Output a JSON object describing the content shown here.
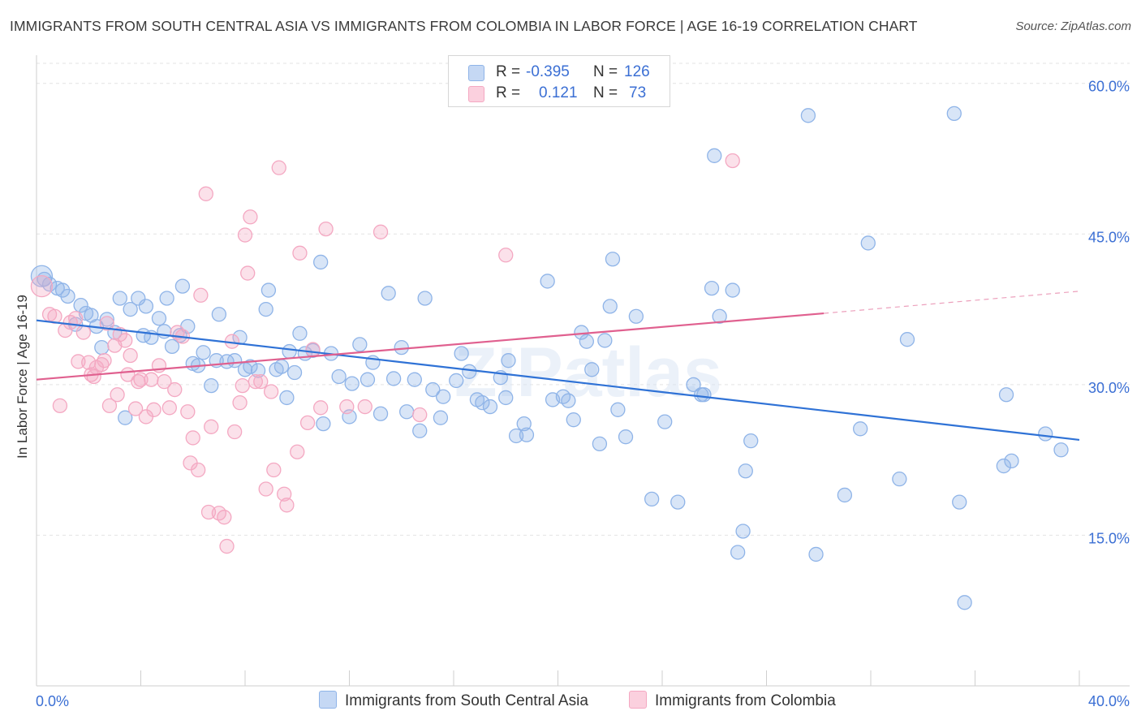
{
  "title": "IMMIGRANTS FROM SOUTH CENTRAL ASIA VS IMMIGRANTS FROM COLOMBIA IN LABOR FORCE | AGE 16-19 CORRELATION CHART",
  "source": "Source: ZipAtlas.com",
  "watermark": "ZIPatlas",
  "legend": {
    "r_label": "R =",
    "n_label": "N =",
    "series1": {
      "r": "-0.395",
      "n": "126"
    },
    "series2": {
      "r": "0.121",
      "n": "73"
    }
  },
  "chart_data": {
    "type": "scatter",
    "title": "IMMIGRANTS FROM SOUTH CENTRAL ASIA VS IMMIGRANTS FROM COLOMBIA IN LABOR FORCE | AGE 16-19 CORRELATION CHART",
    "xlabel": "",
    "ylabel": "In Labor Force | Age 16-19",
    "xlim": [
      0,
      40
    ],
    "ylim": [
      0,
      62
    ],
    "x_tick_labels": [
      "0.0%",
      "40.0%"
    ],
    "y_ticks": [
      15,
      30,
      45,
      60
    ],
    "y_tick_labels": [
      "15.0%",
      "30.0%",
      "45.0%",
      "60.0%"
    ],
    "grid": true,
    "legend_position": "top-center",
    "series": [
      {
        "name": "Immigrants from South Central Asia",
        "color": "#8fb4e8",
        "line_color": "#2f72d6",
        "r": -0.395,
        "n": 126,
        "trend": {
          "x": [
            0,
            40
          ],
          "y": [
            36.4,
            24.5
          ]
        },
        "points": [
          [
            0.2,
            40.8
          ],
          [
            0.5,
            40.0
          ],
          [
            0.8,
            39.6
          ],
          [
            1.2,
            38.8
          ],
          [
            1.7,
            37.9
          ],
          [
            2.1,
            36.9
          ],
          [
            2.3,
            35.8
          ],
          [
            2.7,
            36.5
          ],
          [
            1.5,
            36.0
          ],
          [
            1.0,
            39.4
          ],
          [
            2.5,
            33.7
          ],
          [
            3.0,
            35.2
          ],
          [
            3.2,
            38.6
          ],
          [
            3.6,
            37.5
          ],
          [
            3.4,
            26.7
          ],
          [
            3.9,
            38.6
          ],
          [
            4.2,
            37.8
          ],
          [
            4.4,
            34.7
          ],
          [
            4.7,
            36.6
          ],
          [
            4.9,
            35.3
          ],
          [
            5.0,
            38.6
          ],
          [
            5.2,
            33.8
          ],
          [
            5.5,
            34.9
          ],
          [
            5.6,
            39.8
          ],
          [
            5.8,
            35.8
          ],
          [
            6.0,
            32.1
          ],
          [
            6.2,
            31.9
          ],
          [
            6.4,
            33.2
          ],
          [
            6.7,
            29.9
          ],
          [
            6.9,
            32.4
          ],
          [
            7.0,
            37.0
          ],
          [
            7.3,
            32.3
          ],
          [
            7.6,
            32.4
          ],
          [
            7.8,
            34.7
          ],
          [
            8.0,
            31.5
          ],
          [
            8.2,
            31.8
          ],
          [
            8.5,
            31.4
          ],
          [
            8.8,
            37.5
          ],
          [
            8.9,
            39.4
          ],
          [
            9.2,
            31.5
          ],
          [
            9.4,
            31.8
          ],
          [
            9.7,
            33.3
          ],
          [
            9.9,
            31.2
          ],
          [
            10.1,
            35.1
          ],
          [
            10.3,
            33.1
          ],
          [
            10.6,
            33.4
          ],
          [
            10.9,
            42.2
          ],
          [
            11.0,
            26.1
          ],
          [
            11.3,
            33.1
          ],
          [
            11.6,
            30.8
          ],
          [
            12.0,
            26.8
          ],
          [
            12.1,
            30.1
          ],
          [
            12.4,
            34.0
          ],
          [
            12.7,
            30.5
          ],
          [
            12.9,
            32.2
          ],
          [
            13.2,
            27.1
          ],
          [
            13.5,
            39.1
          ],
          [
            13.7,
            30.6
          ],
          [
            14.0,
            33.7
          ],
          [
            14.2,
            27.3
          ],
          [
            14.5,
            30.5
          ],
          [
            14.7,
            25.4
          ],
          [
            14.9,
            38.6
          ],
          [
            15.2,
            29.5
          ],
          [
            15.5,
            26.7
          ],
          [
            15.6,
            28.8
          ],
          [
            16.1,
            30.4
          ],
          [
            16.3,
            33.1
          ],
          [
            16.6,
            31.3
          ],
          [
            16.9,
            28.5
          ],
          [
            17.1,
            28.2
          ],
          [
            17.4,
            27.8
          ],
          [
            17.8,
            30.7
          ],
          [
            18.1,
            32.4
          ],
          [
            18.0,
            28.7
          ],
          [
            18.4,
            24.9
          ],
          [
            18.8,
            25.0
          ],
          [
            18.7,
            26.1
          ],
          [
            19.6,
            40.3
          ],
          [
            19.8,
            28.5
          ],
          [
            20.2,
            28.8
          ],
          [
            20.4,
            28.4
          ],
          [
            20.6,
            26.5
          ],
          [
            20.9,
            35.2
          ],
          [
            21.1,
            34.3
          ],
          [
            21.3,
            31.5
          ],
          [
            21.6,
            24.1
          ],
          [
            21.8,
            34.4
          ],
          [
            22.0,
            37.8
          ],
          [
            22.1,
            42.5
          ],
          [
            22.3,
            27.5
          ],
          [
            22.6,
            24.8
          ],
          [
            23.0,
            36.8
          ],
          [
            23.6,
            18.6
          ],
          [
            24.1,
            26.3
          ],
          [
            24.6,
            18.3
          ],
          [
            25.2,
            30.0
          ],
          [
            25.5,
            29.0
          ],
          [
            25.6,
            29.0
          ],
          [
            25.9,
            39.6
          ],
          [
            26.0,
            52.8
          ],
          [
            26.2,
            36.8
          ],
          [
            26.7,
            39.4
          ],
          [
            27.1,
            15.4
          ],
          [
            26.9,
            13.3
          ],
          [
            27.2,
            21.4
          ],
          [
            27.4,
            24.4
          ],
          [
            29.6,
            56.8
          ],
          [
            29.9,
            13.1
          ],
          [
            31.0,
            19.0
          ],
          [
            31.6,
            25.6
          ],
          [
            31.9,
            44.1
          ],
          [
            33.1,
            20.6
          ],
          [
            33.4,
            34.5
          ],
          [
            35.2,
            57.0
          ],
          [
            35.4,
            18.3
          ],
          [
            35.6,
            8.3
          ],
          [
            37.2,
            29.0
          ],
          [
            37.1,
            21.9
          ],
          [
            37.4,
            22.4
          ],
          [
            38.7,
            25.1
          ],
          [
            39.3,
            23.5
          ],
          [
            0.3,
            40.5
          ],
          [
            1.9,
            37.1
          ],
          [
            4.1,
            34.9
          ],
          [
            9.6,
            28.7
          ]
        ]
      },
      {
        "name": "Immigrants from Colombia",
        "color": "#f4a8c2",
        "line_color": "#e0608f",
        "r": 0.121,
        "n": 73,
        "trend": {
          "x": [
            0,
            30.2
          ],
          "y": [
            30.5,
            37.1
          ]
        },
        "trend_dashed": {
          "x": [
            30.2,
            40
          ],
          "y": [
            37.1,
            39.3
          ]
        },
        "points": [
          [
            0.2,
            39.8
          ],
          [
            0.5,
            37.0
          ],
          [
            0.7,
            36.8
          ],
          [
            0.9,
            27.9
          ],
          [
            1.1,
            35.4
          ],
          [
            1.3,
            36.2
          ],
          [
            1.5,
            36.6
          ],
          [
            1.6,
            32.3
          ],
          [
            1.8,
            35.2
          ],
          [
            2.0,
            32.2
          ],
          [
            2.1,
            31.0
          ],
          [
            2.2,
            30.8
          ],
          [
            2.3,
            31.7
          ],
          [
            2.5,
            32.0
          ],
          [
            2.6,
            32.4
          ],
          [
            2.7,
            36.1
          ],
          [
            2.8,
            27.9
          ],
          [
            3.0,
            33.9
          ],
          [
            3.1,
            29.0
          ],
          [
            3.2,
            35.0
          ],
          [
            3.4,
            34.4
          ],
          [
            3.5,
            31.0
          ],
          [
            3.6,
            32.9
          ],
          [
            3.8,
            27.6
          ],
          [
            3.9,
            30.3
          ],
          [
            4.0,
            30.5
          ],
          [
            4.2,
            26.8
          ],
          [
            4.4,
            30.5
          ],
          [
            4.5,
            27.5
          ],
          [
            4.7,
            31.9
          ],
          [
            4.9,
            30.3
          ],
          [
            5.1,
            27.7
          ],
          [
            5.3,
            29.5
          ],
          [
            5.4,
            35.2
          ],
          [
            5.6,
            34.8
          ],
          [
            5.8,
            27.3
          ],
          [
            5.9,
            22.2
          ],
          [
            6.0,
            24.7
          ],
          [
            6.2,
            21.5
          ],
          [
            6.3,
            38.9
          ],
          [
            6.5,
            49.0
          ],
          [
            6.6,
            17.3
          ],
          [
            6.7,
            25.8
          ],
          [
            7.0,
            17.2
          ],
          [
            7.2,
            16.8
          ],
          [
            7.3,
            13.9
          ],
          [
            7.5,
            34.3
          ],
          [
            7.6,
            25.3
          ],
          [
            7.8,
            28.2
          ],
          [
            7.9,
            29.9
          ],
          [
            8.0,
            44.9
          ],
          [
            8.1,
            41.1
          ],
          [
            8.2,
            46.7
          ],
          [
            8.4,
            30.3
          ],
          [
            8.6,
            30.3
          ],
          [
            8.8,
            19.6
          ],
          [
            9.0,
            29.3
          ],
          [
            9.1,
            21.5
          ],
          [
            9.3,
            51.6
          ],
          [
            9.5,
            19.1
          ],
          [
            9.6,
            18.0
          ],
          [
            10.0,
            23.3
          ],
          [
            10.1,
            43.1
          ],
          [
            10.4,
            26.2
          ],
          [
            10.6,
            33.5
          ],
          [
            10.9,
            27.7
          ],
          [
            11.1,
            45.5
          ],
          [
            11.9,
            27.8
          ],
          [
            12.6,
            27.8
          ],
          [
            13.2,
            45.2
          ],
          [
            14.7,
            27.0
          ],
          [
            18.0,
            42.9
          ],
          [
            26.7,
            52.3
          ]
        ]
      }
    ]
  },
  "bottom_legend": {
    "item1": "Immigrants from South Central Asia",
    "item2": "Immigrants from Colombia"
  }
}
